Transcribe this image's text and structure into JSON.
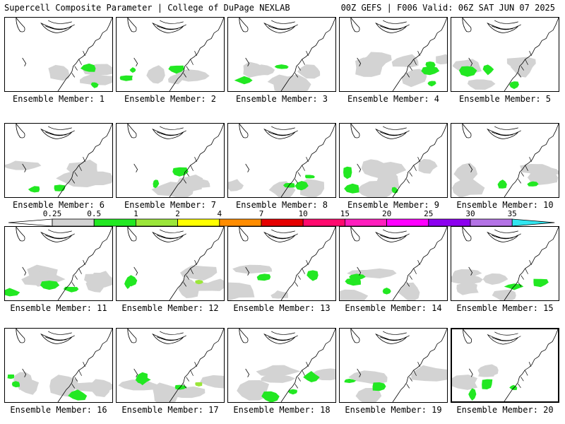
{
  "header": {
    "left": "Supercell Composite Parameter | College of DuPage NEXLAB",
    "right": "00Z GEFS | F006 Valid: 06Z SAT JUN 07 2025"
  },
  "members": [
    {
      "label": "Ensemble Member: 1"
    },
    {
      "label": "Ensemble Member: 2"
    },
    {
      "label": "Ensemble Member: 3"
    },
    {
      "label": "Ensemble Member: 4"
    },
    {
      "label": "Ensemble Member: 5"
    },
    {
      "label": "Ensemble Member: 6"
    },
    {
      "label": "Ensemble Member: 7"
    },
    {
      "label": "Ensemble Member: 8"
    },
    {
      "label": "Ensemble Member: 9"
    },
    {
      "label": "Ensemble Member: 10"
    },
    {
      "label": "Ensemble Member: 11"
    },
    {
      "label": "Ensemble Member: 12"
    },
    {
      "label": "Ensemble Member: 13"
    },
    {
      "label": "Ensemble Member: 14"
    },
    {
      "label": "Ensemble Member: 15"
    },
    {
      "label": "Ensemble Member: 16"
    },
    {
      "label": "Ensemble Member: 17"
    },
    {
      "label": "Ensemble Member: 18"
    },
    {
      "label": "Ensemble Member: 19"
    },
    {
      "label": "Ensemble Member: 20"
    }
  ],
  "selected_member": 20,
  "colorbar": {
    "ticks": [
      "0.25",
      "0.5",
      "1",
      "2",
      "4",
      "7",
      "10",
      "15",
      "20",
      "25",
      "30",
      "35"
    ],
    "colors": [
      "#d3d3d3",
      "#22e822",
      "#9be63a",
      "#ffff00",
      "#ff8c00",
      "#e60000",
      "#ff0a6e",
      "#ff1ebe",
      "#ff00ff",
      "#8c00f0",
      "#b473e6",
      "#32e6f0"
    ]
  }
}
